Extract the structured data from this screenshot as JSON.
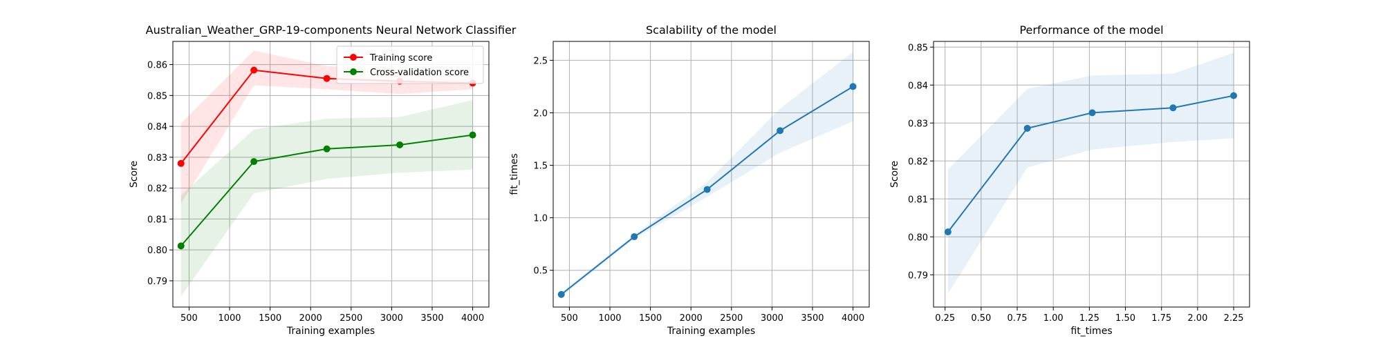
{
  "chart_data": [
    {
      "type": "line",
      "title": "Australian_Weather_GRP-19-components Neural Network Classifier",
      "xlabel": "Training examples",
      "ylabel": "Score",
      "xlim": [
        300,
        4200
      ],
      "ylim": [
        0.7815,
        0.8675
      ],
      "xticks": [
        500,
        1000,
        1500,
        2000,
        2500,
        3000,
        3500,
        4000
      ],
      "yticks": [
        0.79,
        0.8,
        0.81,
        0.82,
        0.83,
        0.84,
        0.85,
        0.86
      ],
      "ytick_decimals": 2,
      "grid": true,
      "legend": "top-right",
      "series": [
        {
          "name": "Training score",
          "color": "#ff0000",
          "x": [
            400,
            1300,
            2200,
            3100,
            4000
          ],
          "y": [
            0.828,
            0.8582,
            0.8555,
            0.8546,
            0.854
          ],
          "band_low": [
            0.815,
            0.8533,
            0.852,
            0.8505,
            0.852
          ],
          "band_high": [
            0.841,
            0.8645,
            0.8595,
            0.8585,
            0.856
          ]
        },
        {
          "name": "Cross-validation score",
          "color": "#008000",
          "x": [
            400,
            1300,
            2200,
            3100,
            4000
          ],
          "y": [
            0.8013,
            0.8286,
            0.8327,
            0.834,
            0.8372
          ],
          "band_low": [
            0.785,
            0.8183,
            0.823,
            0.825,
            0.826
          ],
          "band_high": [
            0.8177,
            0.839,
            0.8425,
            0.843,
            0.8485
          ]
        }
      ]
    },
    {
      "type": "line",
      "title": "Scalability of the model",
      "xlabel": "Training examples",
      "ylabel": "fit_times",
      "xlim": [
        300,
        4200
      ],
      "ylim": [
        0.15,
        2.68
      ],
      "xticks": [
        500,
        1000,
        1500,
        2000,
        2500,
        3000,
        3500,
        4000
      ],
      "yticks": [
        0.5,
        1.0,
        1.5,
        2.0,
        2.5
      ],
      "ytick_decimals": 1,
      "grid": true,
      "series": [
        {
          "color": "#1f77b4",
          "x": [
            400,
            1300,
            2200,
            3100,
            4000
          ],
          "y": [
            0.27,
            0.82,
            1.27,
            1.83,
            2.25
          ],
          "band_low": [
            0.25,
            0.8,
            1.2,
            1.62,
            1.92
          ],
          "band_high": [
            0.29,
            0.84,
            1.34,
            2.04,
            2.58
          ]
        }
      ]
    },
    {
      "type": "line",
      "title": "Performance of the model",
      "xlabel": "fit_times",
      "ylabel": "Score",
      "xlim": [
        0.17,
        2.36
      ],
      "ylim": [
        0.7815,
        0.8515
      ],
      "xticks": [
        0.25,
        0.5,
        0.75,
        1.0,
        1.25,
        1.5,
        1.75,
        2.0,
        2.25
      ],
      "xtick_decimals": 2,
      "yticks": [
        0.79,
        0.8,
        0.81,
        0.82,
        0.83,
        0.84,
        0.85
      ],
      "ytick_decimals": 2,
      "grid": true,
      "series": [
        {
          "color": "#1f77b4",
          "x": [
            0.27,
            0.82,
            1.27,
            1.83,
            2.25
          ],
          "y": [
            0.8013,
            0.8286,
            0.8327,
            0.834,
            0.8372
          ],
          "band_low": [
            0.785,
            0.8183,
            0.823,
            0.825,
            0.826
          ],
          "band_high": [
            0.8177,
            0.839,
            0.8425,
            0.843,
            0.8485
          ]
        }
      ]
    }
  ]
}
